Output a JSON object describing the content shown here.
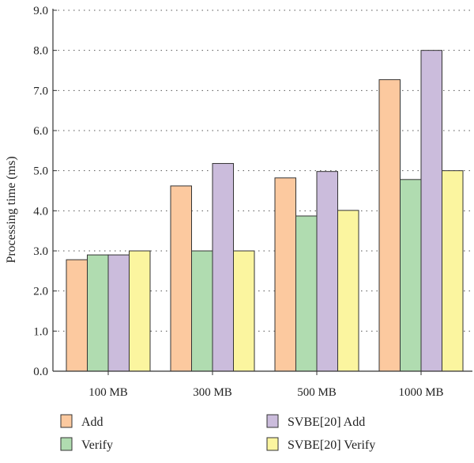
{
  "chart_data": {
    "type": "bar",
    "categories": [
      "100 MB",
      "300 MB",
      "500 MB",
      "1000 MB"
    ],
    "series": [
      {
        "name": "Add",
        "color": "#fcc99f",
        "values": [
          2.78,
          4.62,
          4.82,
          7.27
        ]
      },
      {
        "name": "Verify",
        "color": "#b0dcb0",
        "values": [
          2.9,
          3.0,
          3.87,
          4.78
        ]
      },
      {
        "name": "SVBE[20] Add",
        "color": "#cbbcdc",
        "values": [
          2.9,
          5.18,
          4.98,
          8.0
        ]
      },
      {
        "name": "SVBE[20] Verify",
        "color": "#fbf59f",
        "values": [
          3.0,
          3.0,
          4.01,
          5.0
        ]
      }
    ],
    "title": "",
    "xlabel": "",
    "ylabel": "Processing time (ms)",
    "ylim": [
      0,
      9
    ],
    "yticks": [
      "0.0",
      "1.0",
      "2.0",
      "3.0",
      "4.0",
      "5.0",
      "6.0",
      "7.0",
      "8.0",
      "9.0"
    ],
    "grid": "horizontal dotted",
    "legend_position": "bottom"
  }
}
